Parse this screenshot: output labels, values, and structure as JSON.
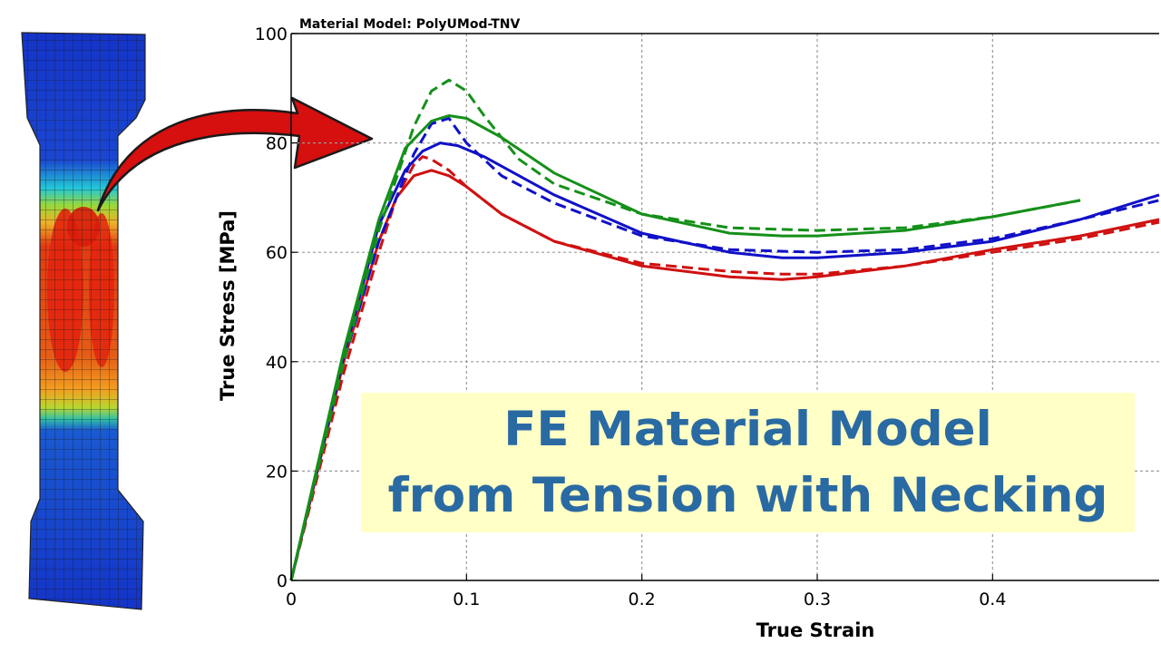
{
  "banner": {
    "line1": "FE Material Model",
    "line2": "from Tension with Necking"
  },
  "chart_data": {
    "type": "line",
    "title": "Material Model: PolyUMod-TNV",
    "xlabel": "True Strain",
    "ylabel": "True Stress [MPa]",
    "xlim": [
      0,
      0.495
    ],
    "ylim": [
      0,
      100
    ],
    "xticks": [
      0,
      0.1,
      0.2,
      0.3,
      0.4
    ],
    "xtick_labels": [
      "0",
      "0.1",
      "0.2",
      "0.3",
      "0.4"
    ],
    "yticks": [
      0,
      20,
      40,
      60,
      80,
      100
    ],
    "ytick_labels": [
      "0",
      "20",
      "40",
      "60",
      "80",
      "100"
    ],
    "grid": true,
    "legend": "none",
    "series": [
      {
        "color": "#d01010",
        "style": "solid",
        "x": [
          0,
          0.03,
          0.05,
          0.06,
          0.07,
          0.08,
          0.09,
          0.1,
          0.12,
          0.15,
          0.2,
          0.25,
          0.28,
          0.3,
          0.35,
          0.4,
          0.45,
          0.495
        ],
        "y": [
          0,
          40,
          62,
          70,
          74,
          75,
          74,
          72,
          67,
          62,
          57.5,
          55.5,
          55,
          55.5,
          57.5,
          60.5,
          63,
          66
        ]
      },
      {
        "color": "#d01010",
        "style": "dashed",
        "x": [
          0,
          0.03,
          0.05,
          0.06,
          0.07,
          0.075,
          0.08,
          0.09,
          0.1,
          0.12,
          0.15,
          0.2,
          0.25,
          0.28,
          0.3,
          0.35,
          0.4,
          0.45,
          0.495
        ],
        "y": [
          0,
          38,
          60,
          70,
          76,
          77.5,
          77,
          75,
          72,
          67,
          62,
          58,
          56.5,
          56,
          56,
          57.5,
          60,
          62.5,
          65.5
        ]
      },
      {
        "color": "#1010c8",
        "style": "solid",
        "x": [
          0,
          0.03,
          0.05,
          0.065,
          0.075,
          0.085,
          0.095,
          0.11,
          0.13,
          0.15,
          0.2,
          0.25,
          0.28,
          0.3,
          0.35,
          0.4,
          0.45,
          0.495
        ],
        "y": [
          0,
          41,
          65,
          75,
          78.5,
          80,
          79.5,
          77.5,
          74,
          70.5,
          63.5,
          60,
          59,
          59,
          60,
          62,
          66,
          70.5
        ]
      },
      {
        "color": "#1010c8",
        "style": "dashed",
        "x": [
          0,
          0.03,
          0.05,
          0.07,
          0.08,
          0.09,
          0.1,
          0.12,
          0.15,
          0.2,
          0.25,
          0.3,
          0.35,
          0.4,
          0.45,
          0.495
        ],
        "y": [
          0,
          40,
          62,
          78,
          83.5,
          84.5,
          80,
          74,
          69,
          63,
          60.5,
          60,
          60.5,
          62.5,
          66,
          69.5
        ]
      },
      {
        "color": "#15901a",
        "style": "solid",
        "x": [
          0,
          0.03,
          0.05,
          0.065,
          0.08,
          0.09,
          0.1,
          0.12,
          0.15,
          0.2,
          0.25,
          0.28,
          0.3,
          0.35,
          0.4,
          0.45
        ],
        "y": [
          0,
          42,
          66,
          79,
          84,
          85,
          84.5,
          81,
          74.5,
          67,
          63.5,
          63,
          63,
          64,
          66.5,
          69.5
        ]
      },
      {
        "color": "#15901a",
        "style": "dashed",
        "x": [
          0,
          0.03,
          0.05,
          0.07,
          0.08,
          0.09,
          0.1,
          0.11,
          0.13,
          0.15,
          0.2,
          0.25,
          0.3,
          0.35,
          0.4,
          0.45
        ],
        "y": [
          0,
          40,
          64,
          83,
          89.5,
          91.5,
          89.5,
          85,
          77,
          72.5,
          67,
          64.5,
          64,
          64.5,
          66.5,
          69.5
        ]
      }
    ]
  }
}
